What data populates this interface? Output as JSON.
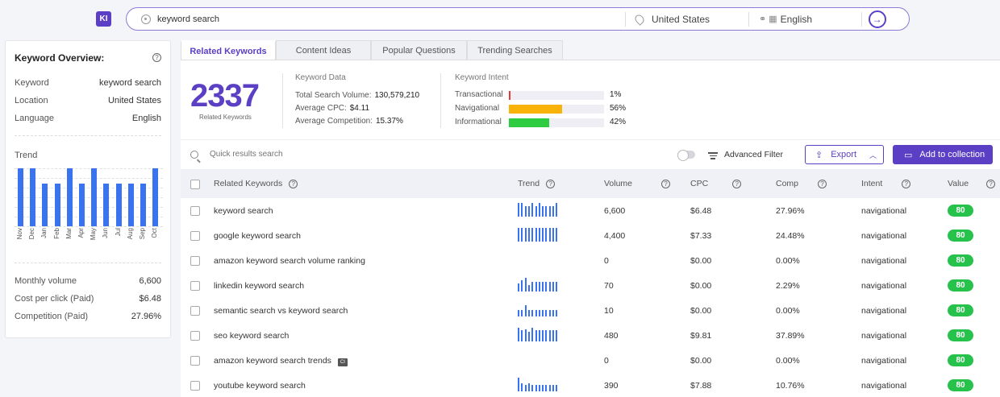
{
  "app": {
    "logo": "KI"
  },
  "search": {
    "query": "keyword search",
    "location": "United States",
    "language": "English",
    "go_icon": "arrow-enter-icon"
  },
  "overview": {
    "title": "Keyword Overview:",
    "keyword_label": "Keyword",
    "keyword_value": "keyword search",
    "location_label": "Location",
    "location_value": "United States",
    "language_label": "Language",
    "language_value": "English",
    "trend_label": "Trend",
    "trend": {
      "type": "bar",
      "categories": [
        "Nov",
        "Dec",
        "Jan",
        "Feb",
        "Mar",
        "Apr",
        "May",
        "Jun",
        "Jul",
        "Aug",
        "Sep",
        "Oct"
      ],
      "relative_values": [
        1.0,
        1.0,
        0.74,
        0.74,
        1.0,
        0.74,
        1.0,
        0.74,
        0.74,
        0.74,
        0.74,
        1.0
      ]
    },
    "monthly_label": "Monthly volume",
    "monthly_value": "6,600",
    "cpc_label": "Cost per click (Paid)",
    "cpc_value": "$6.48",
    "comp_label": "Competition (Paid)",
    "comp_value": "27.96%"
  },
  "tabs": [
    {
      "label": "Related Keywords",
      "active": true
    },
    {
      "label": "Content Ideas",
      "active": false
    },
    {
      "label": "Popular Questions",
      "active": false
    },
    {
      "label": "Trending Searches",
      "active": false
    }
  ],
  "summary": {
    "count": "2337",
    "count_label": "Related Keywords",
    "data_title": "Keyword Data",
    "total_label": "Total Search Volume:",
    "total_value": "130,579,210",
    "cpc_label": "Average CPC:",
    "cpc_value": "$4.11",
    "comp_label": "Average Competition:",
    "comp_value": "15.37%",
    "intent_title": "Keyword Intent",
    "intents": [
      {
        "label": "Transactional",
        "pct": "1%",
        "fraction": 0.01,
        "color": "#e53935"
      },
      {
        "label": "Navigational",
        "pct": "56%",
        "fraction": 0.56,
        "color": "#f9b208"
      },
      {
        "label": "Informational",
        "pct": "42%",
        "fraction": 0.42,
        "color": "#2ecc40"
      }
    ]
  },
  "toolbar": {
    "quick_placeholder": "Quick results search",
    "advanced_filter": "Advanced Filter",
    "export": "Export",
    "add_collection": "Add to collection"
  },
  "table": {
    "headers": {
      "keyword": "Related Keywords",
      "trend": "Trend",
      "volume": "Volume",
      "cpc": "CPC",
      "comp": "Comp",
      "intent": "Intent",
      "value": "Value"
    },
    "rows": [
      {
        "keyword": "keyword search",
        "volume": "6,600",
        "cpc": "$6.48",
        "comp": "27.96%",
        "intent": "navigational",
        "value": "80",
        "ci": false,
        "trend": [
          1,
          1,
          0.74,
          0.74,
          1,
          0.74,
          1,
          0.74,
          0.74,
          0.74,
          0.74,
          1
        ]
      },
      {
        "keyword": "google keyword search",
        "volume": "4,400",
        "cpc": "$7.33",
        "comp": "24.48%",
        "intent": "navigational",
        "value": "80",
        "ci": false,
        "trend": [
          1,
          1,
          1,
          1,
          1,
          1,
          1,
          1,
          1,
          1,
          1,
          1
        ]
      },
      {
        "keyword": "amazon keyword search volume ranking",
        "volume": "0",
        "cpc": "$0.00",
        "comp": "0.00%",
        "intent": "navigational",
        "value": "80",
        "ci": false,
        "trend": []
      },
      {
        "keyword": "linkedin keyword search",
        "volume": "70",
        "cpc": "$0.00",
        "comp": "2.29%",
        "intent": "navigational",
        "value": "80",
        "ci": false,
        "trend": [
          0.6,
          0.8,
          1,
          0.5,
          0.7,
          0.7,
          0.7,
          0.7,
          0.7,
          0.7,
          0.7,
          0.7
        ]
      },
      {
        "keyword": "semantic search vs keyword search",
        "volume": "10",
        "cpc": "$0.00",
        "comp": "0.00%",
        "intent": "navigational",
        "value": "80",
        "ci": false,
        "trend": [
          0.5,
          0.5,
          0.8,
          0.5,
          0.5,
          0.5,
          0.5,
          0.5,
          0.5,
          0.5,
          0.5,
          0.5
        ]
      },
      {
        "keyword": "seo keyword search",
        "volume": "480",
        "cpc": "$9.81",
        "comp": "37.89%",
        "intent": "navigational",
        "value": "80",
        "ci": false,
        "trend": [
          1,
          0.8,
          0.9,
          0.7,
          1,
          0.8,
          0.8,
          0.8,
          0.8,
          0.8,
          0.8,
          0.8
        ]
      },
      {
        "keyword": "amazon keyword search trends",
        "volume": "0",
        "cpc": "$0.00",
        "comp": "0.00%",
        "intent": "navigational",
        "value": "80",
        "ci": true,
        "ci_label": "CI",
        "trend": []
      },
      {
        "keyword": "youtube keyword search",
        "volume": "390",
        "cpc": "$7.88",
        "comp": "10.76%",
        "intent": "navigational",
        "value": "80",
        "ci": false,
        "trend": [
          1,
          0.6,
          0.5,
          0.6,
          0.5,
          0.5,
          0.5,
          0.5,
          0.5,
          0.5,
          0.5,
          0.5
        ]
      }
    ]
  }
}
